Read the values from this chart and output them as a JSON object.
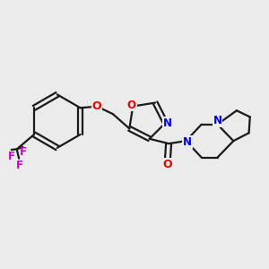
{
  "background_color": "#ebebeb",
  "bond_color": "#1a1a1a",
  "oxygen_color": "#ee0000",
  "nitrogen_color": "#0000ee",
  "fluorine_color": "#cc00cc",
  "line_width": 1.6,
  "figsize": [
    3.0,
    3.0
  ],
  "dpi": 100,
  "xlim": [
    0.0,
    10.0
  ],
  "ylim": [
    0.0,
    10.0
  ]
}
